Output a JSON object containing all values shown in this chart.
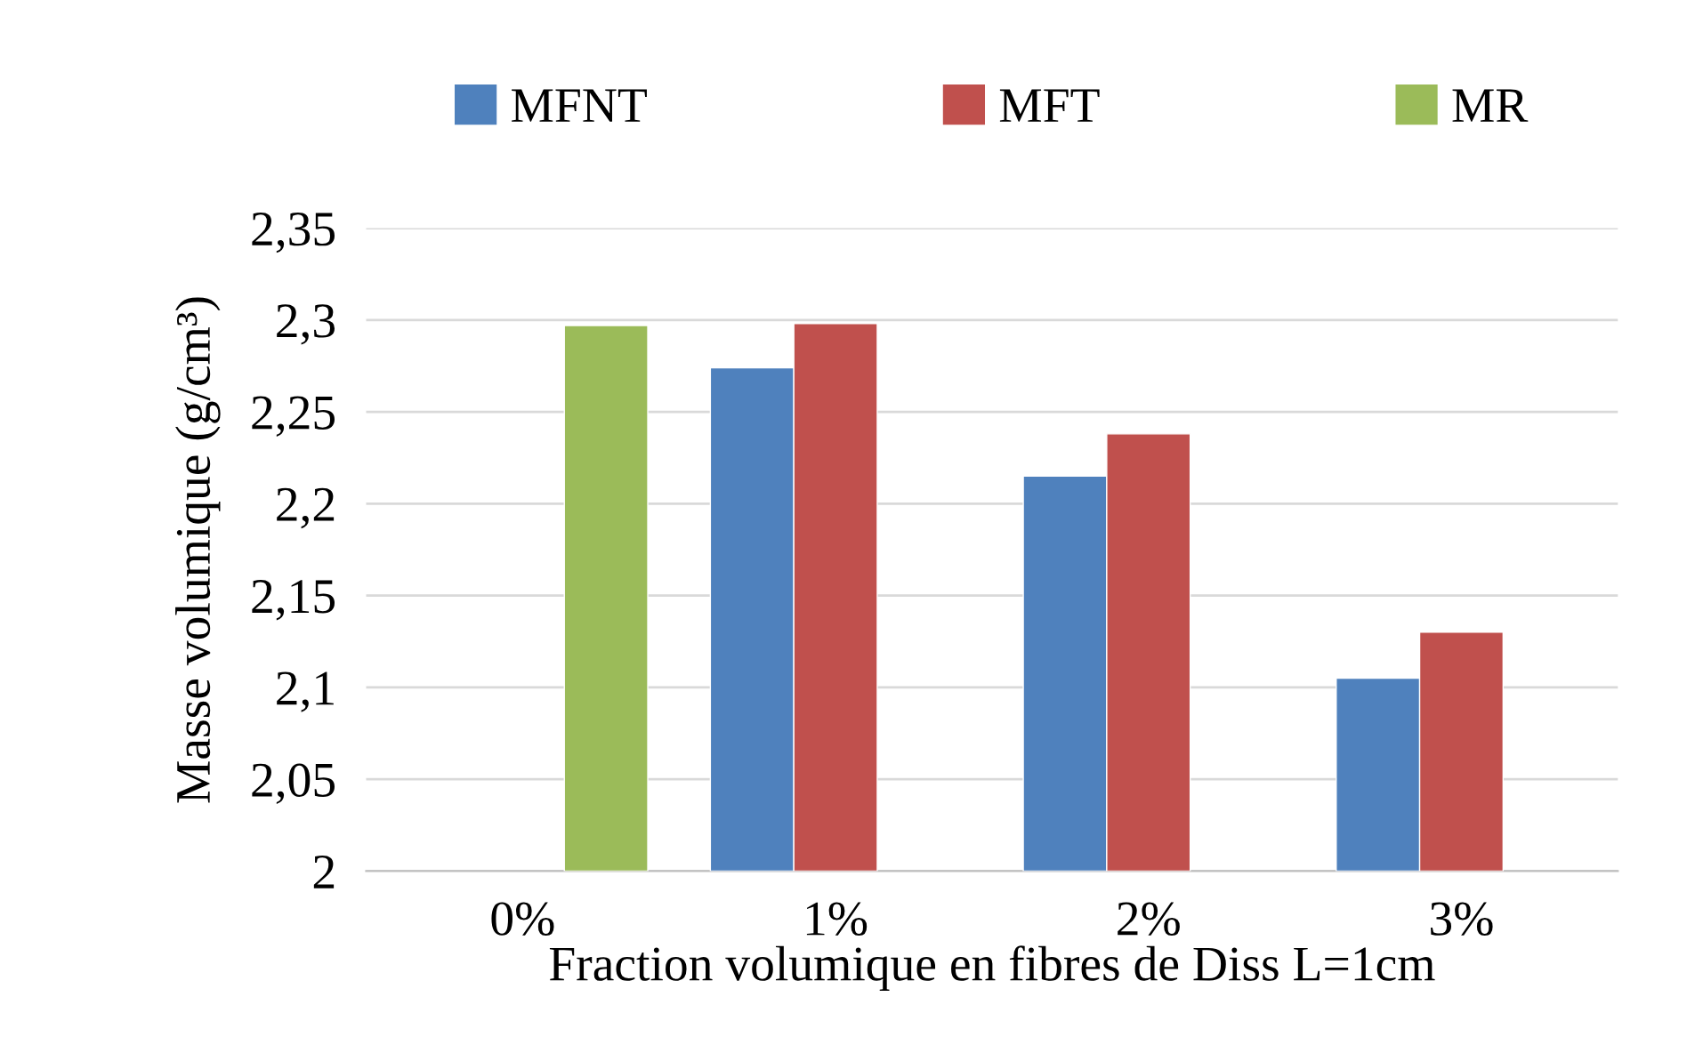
{
  "chart_data": {
    "type": "bar",
    "xlabel": "Fraction volumique en fibres de Diss L=1cm",
    "ylabel": "Masse volumique (g/cm³)",
    "categories": [
      "0%",
      "1%",
      "2%",
      "3%"
    ],
    "series": [
      {
        "name": "MFNT",
        "color": "#4f81bd",
        "values": [
          null,
          2.274,
          2.215,
          2.105
        ]
      },
      {
        "name": "MFT",
        "color": "#c0504d",
        "values": [
          null,
          2.298,
          2.238,
          2.13
        ]
      },
      {
        "name": "MR",
        "color": "#9bbb59",
        "values": [
          2.297,
          null,
          null,
          null
        ]
      }
    ],
    "ylim": [
      2,
      2.35
    ],
    "yticks": [
      {
        "value": 2,
        "label": "2"
      },
      {
        "value": 2.05,
        "label": "2,05"
      },
      {
        "value": 2.1,
        "label": "2,1"
      },
      {
        "value": 2.15,
        "label": "2,15"
      },
      {
        "value": 2.2,
        "label": "2,2"
      },
      {
        "value": 2.25,
        "label": "2,25"
      },
      {
        "value": 2.3,
        "label": "2,3"
      },
      {
        "value": 2.35,
        "label": "2,35"
      }
    ],
    "grid": "y",
    "legend": "top"
  }
}
